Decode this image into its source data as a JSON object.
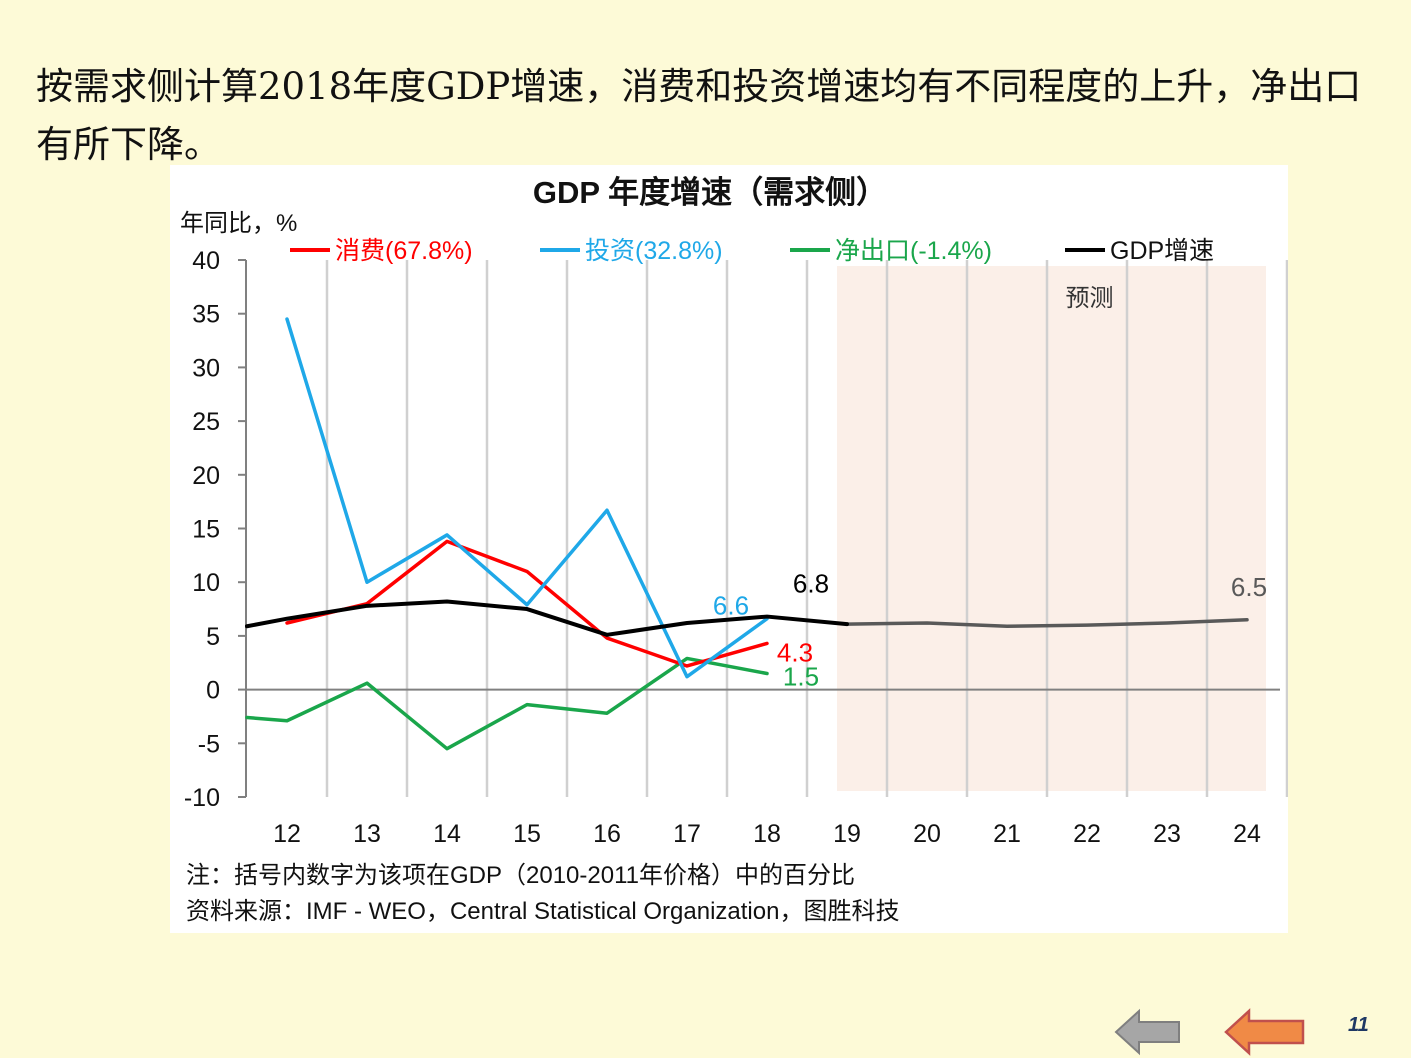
{
  "heading": "按需求侧计算2018年度GDP增速，消费和投资增速均有不同程度的上升，净出口有所下降。",
  "page_number": "11",
  "navigation": {
    "back_icon": "left-arrow-icon-gray",
    "prev_icon": "left-arrow-icon-orange"
  },
  "chart_data": {
    "type": "line",
    "title": "GDP 年度增速（需求侧）",
    "ylabel": "年同比，%",
    "xlabel": "",
    "ylim": [
      -10,
      40
    ],
    "yticks": [
      "40",
      "35",
      "30",
      "25",
      "20",
      "15",
      "10",
      "5",
      "0",
      "-5",
      "-10"
    ],
    "categories": [
      "12",
      "13",
      "14",
      "15",
      "16",
      "17",
      "18",
      "19",
      "20",
      "21",
      "22",
      "23",
      "24"
    ],
    "grid": "vertical",
    "legend_position": "top",
    "forecast_region": {
      "label": "预测",
      "from": "19",
      "to": "24"
    },
    "series": [
      {
        "name": "消费(67.8%)",
        "color": "#ff0000",
        "points": [
          [
            "12",
            6.2
          ],
          [
            "13",
            8.0
          ],
          [
            "14",
            13.8
          ],
          [
            "15",
            11.0
          ],
          [
            "16",
            4.8
          ],
          [
            "17",
            2.2
          ],
          [
            "18",
            4.3
          ]
        ]
      },
      {
        "name": "投资(32.8%)",
        "color": "#1fa8e8",
        "points": [
          [
            "12",
            34.5
          ],
          [
            "13",
            10.0
          ],
          [
            "14",
            14.4
          ],
          [
            "15",
            7.9
          ],
          [
            "16",
            16.7
          ],
          [
            "17",
            1.2
          ],
          [
            "18",
            6.6
          ]
        ]
      },
      {
        "name": "净出口(-1.4%)",
        "color": "#1aa64b",
        "points": [
          [
            "11.5",
            -2.6
          ],
          [
            "12",
            -2.9
          ],
          [
            "13",
            0.6
          ],
          [
            "14",
            -5.5
          ],
          [
            "15",
            -1.4
          ],
          [
            "16",
            -2.2
          ],
          [
            "17",
            2.9
          ],
          [
            "18",
            1.5
          ]
        ]
      },
      {
        "name": "GDP增速",
        "color": "#000000",
        "points": [
          [
            "11.5",
            5.9
          ],
          [
            "12",
            6.6
          ],
          [
            "13",
            7.8
          ],
          [
            "14",
            8.2
          ],
          [
            "15",
            7.5
          ],
          [
            "16",
            5.1
          ],
          [
            "17",
            6.2
          ],
          [
            "18",
            6.8
          ],
          [
            "19",
            6.1
          ]
        ]
      }
    ],
    "forecast_series": {
      "color": "#595959",
      "points": [
        [
          "19",
          6.1
        ],
        [
          "20",
          6.2
        ],
        [
          "21",
          5.9
        ],
        [
          "22",
          6.0
        ],
        [
          "23",
          6.2
        ],
        [
          "24",
          6.5
        ]
      ]
    },
    "data_labels": [
      {
        "text": "6.6",
        "x": "18",
        "y": 6.6,
        "color": "#1fa8e8"
      },
      {
        "text": "6.8",
        "x": "18",
        "y": 6.8,
        "color": "#000000"
      },
      {
        "text": "4.3",
        "x": "18",
        "y": 4.3,
        "color": "#ff0000"
      },
      {
        "text": "1.5",
        "x": "18",
        "y": 1.5,
        "color": "#1aa64b"
      },
      {
        "text": "6.5",
        "x": "24",
        "y": 6.5,
        "color": "#595959"
      }
    ],
    "notes": [
      "注：括号内数字为该项在GDP（2010-2011年价格）中的百分比",
      "资料来源：IMF - WEO，Central Statistical Organization，图胜科技"
    ]
  }
}
